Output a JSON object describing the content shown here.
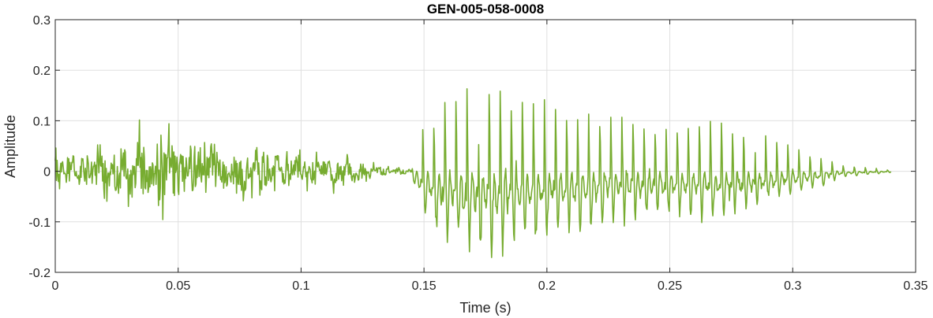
{
  "chart_data": {
    "type": "line",
    "title": "GEN-005-058-0008",
    "xlabel": "Time (s)",
    "ylabel": "Amplitude",
    "xlim": [
      0,
      0.35
    ],
    "ylim": [
      -0.2,
      0.3
    ],
    "xticks": [
      0,
      0.05,
      0.1,
      0.15,
      0.2,
      0.25,
      0.3,
      0.35
    ],
    "xtick_labels": [
      "0",
      "0.05",
      "0.1",
      "0.15",
      "0.2",
      "0.25",
      "0.3",
      "0.35"
    ],
    "yticks": [
      -0.2,
      -0.1,
      0,
      0.1,
      0.2,
      0.3
    ],
    "ytick_labels": [
      "-0.2",
      "-0.1",
      "0",
      "0.1",
      "0.2",
      "0.3"
    ],
    "grid": true,
    "line_color": "#77ac30",
    "series": [
      {
        "sample_rate_hz": 4000,
        "duration_s": 0.34,
        "segments": [
          {
            "t_start": 0.0,
            "t_end": 0.145,
            "kind": "noise",
            "envelope": [
              [
                0.0,
                0.025
              ],
              [
                0.02,
                0.035
              ],
              [
                0.04,
                0.06
              ],
              [
                0.05,
                0.055
              ],
              [
                0.07,
                0.04
              ],
              [
                0.1,
                0.03
              ],
              [
                0.12,
                0.02
              ],
              [
                0.13,
                0.01
              ],
              [
                0.145,
                0.004
              ]
            ]
          },
          {
            "t_start": 0.145,
            "t_end": 0.34,
            "kind": "periodic",
            "pulse_period_s": 0.0045,
            "envelope": [
              [
                0.145,
                0.01
              ],
              [
                0.148,
                0.08
              ],
              [
                0.155,
                0.15
              ],
              [
                0.165,
                0.19
              ],
              [
                0.18,
                0.2
              ],
              [
                0.2,
                0.16
              ],
              [
                0.24,
                0.11
              ],
              [
                0.27,
                0.12
              ],
              [
                0.29,
                0.08
              ],
              [
                0.31,
                0.04
              ],
              [
                0.32,
                0.015
              ],
              [
                0.34,
                0.003
              ]
            ]
          }
        ]
      }
    ]
  }
}
